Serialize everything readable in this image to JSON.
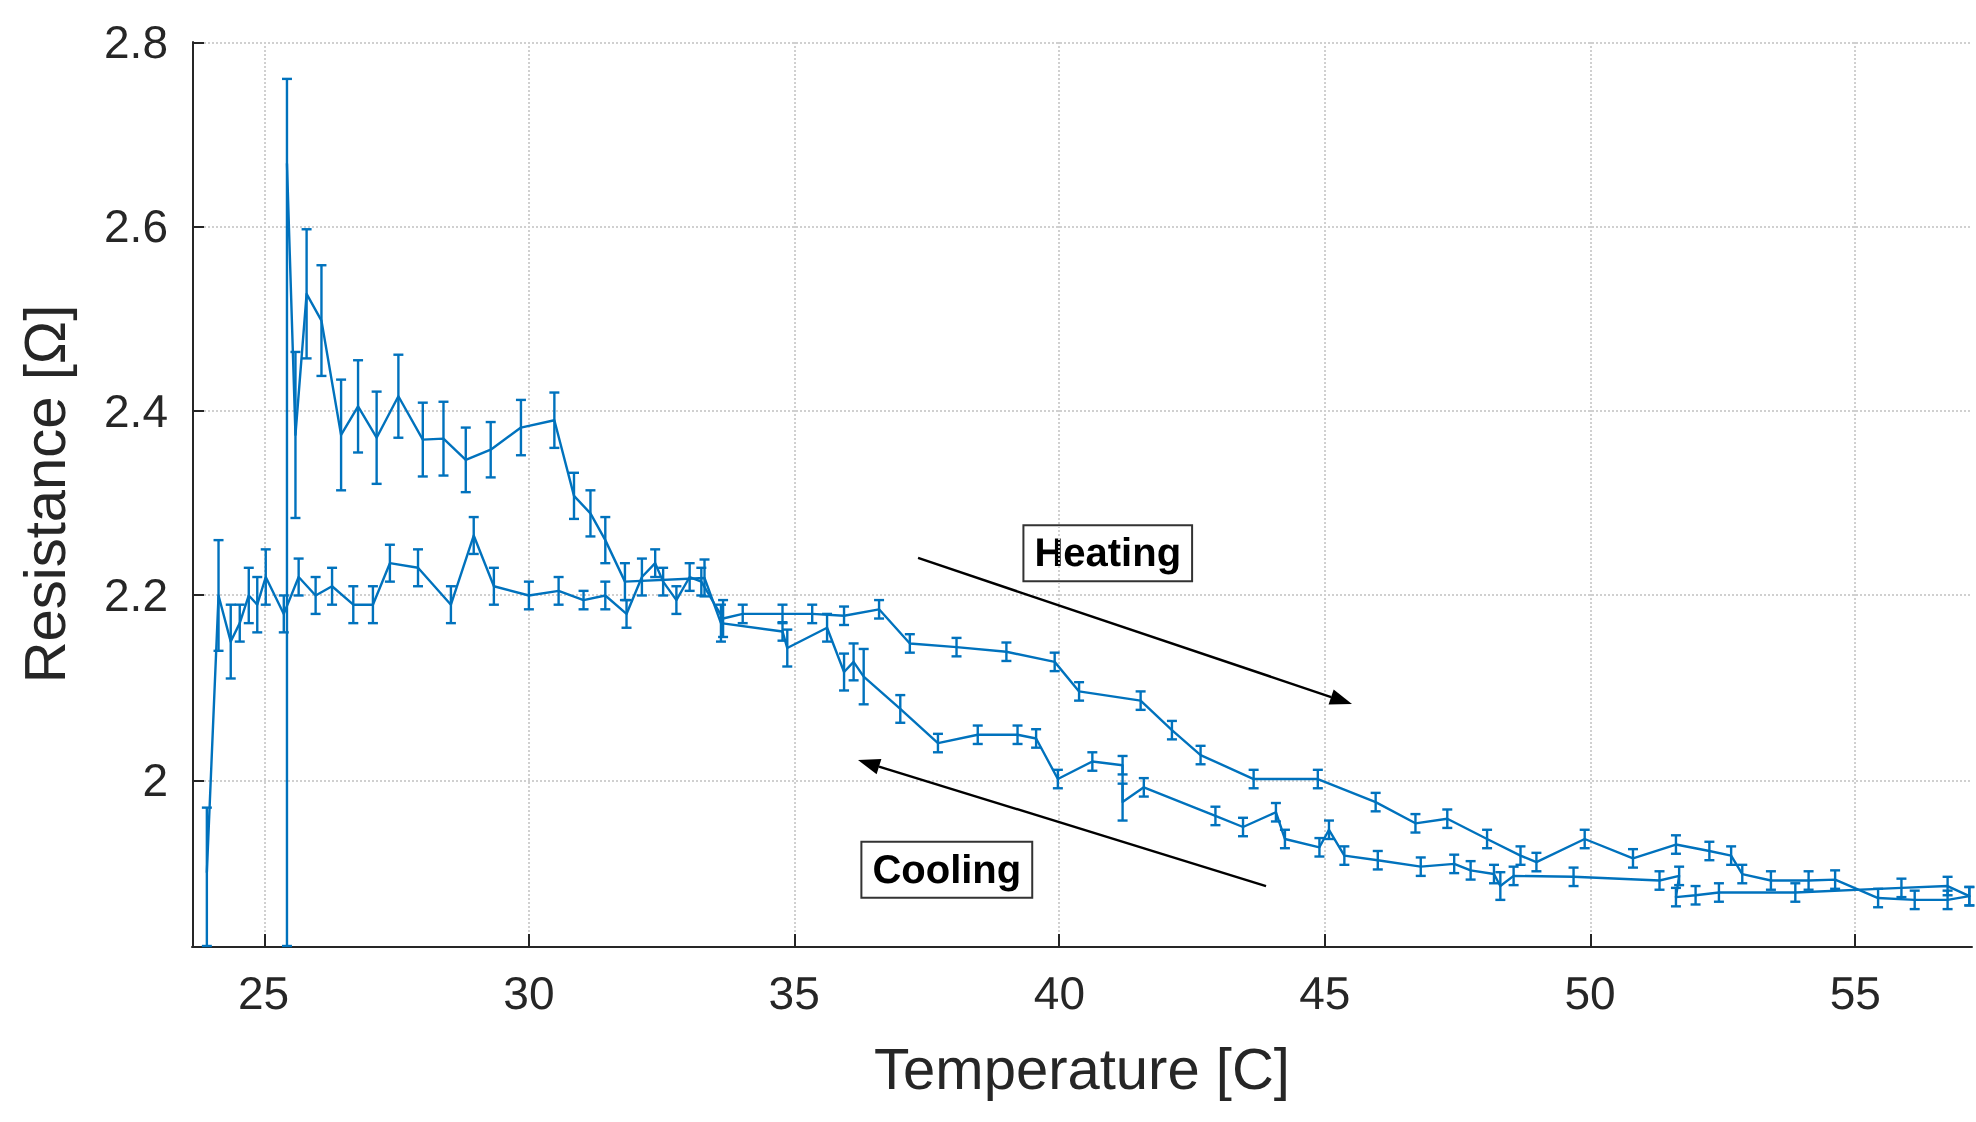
{
  "chart_data": {
    "type": "line",
    "xlabel": "Temperature [C]",
    "ylabel": "Resistance [Ω]",
    "xlim": [
      23.65,
      57.2
    ],
    "xticks": [
      25,
      30,
      35,
      40,
      45,
      50,
      55
    ],
    "ylim": [
      1.82,
      2.8
    ],
    "yticks": [
      2,
      2.2,
      2.4,
      2.6,
      2.8
    ],
    "grid": true,
    "marker": "none",
    "line_style": "solid",
    "annotations": [
      "Heating",
      "Cooling"
    ],
    "series": [
      {
        "color": "#0072bd",
        "x": [
          23.93,
          24.15,
          24.38,
          24.55,
          24.72,
          24.88,
          25.04,
          25.38,
          25.66,
          25.98,
          26.29,
          26.69,
          27.06,
          27.38,
          27.91,
          28.53,
          28.96,
          29.34,
          30.0,
          30.56,
          31.03,
          31.44,
          31.84,
          32.13,
          32.38,
          32.53,
          32.78,
          33.03,
          33.25,
          33.66,
          34.03,
          34.78,
          35.34,
          35.94,
          36.6,
          37.18,
          38.06,
          39.0,
          39.91,
          40.37,
          41.53,
          42.12,
          42.66,
          43.66,
          44.87,
          45.96,
          46.71,
          47.31,
          48.06,
          48.69,
          48.99,
          49.9,
          50.81,
          51.62,
          52.25,
          52.66,
          52.87,
          53.41,
          54.12,
          54.62,
          55.43,
          56.12,
          56.74,
          57.15
        ],
        "values": [
          1.9,
          2.2,
          2.15,
          2.17,
          2.2,
          2.19,
          2.22,
          2.18,
          2.22,
          2.2,
          2.21,
          2.19,
          2.19,
          2.235,
          2.23,
          2.19,
          2.265,
          2.21,
          2.2,
          2.205,
          2.195,
          2.2,
          2.18,
          2.22,
          2.235,
          2.215,
          2.195,
          2.22,
          2.215,
          2.175,
          2.18,
          2.18,
          2.18,
          2.178,
          2.185,
          2.148,
          2.144,
          2.139,
          2.128,
          2.096,
          2.086,
          2.054,
          2.027,
          2.001,
          2.001,
          1.976,
          1.953,
          1.958,
          1.936,
          1.918,
          1.911,
          1.936,
          1.915,
          1.93,
          1.923,
          1.918,
          1.898,
          1.891,
          1.891,
          1.892,
          1.872,
          1.87,
          1.87,
          1.874
        ],
        "errors": [
          [
            1.82,
            1.97
          ],
          0.06,
          0.04,
          0.02,
          0.03,
          0.03,
          0.03,
          0.02,
          0.02,
          0.02,
          0.02,
          0.02,
          0.02,
          0.02,
          0.02,
          0.02,
          0.02,
          0.02,
          0.015,
          0.015,
          0.01,
          0.015,
          0.015,
          0.02,
          0.015,
          0.015,
          0.015,
          0.015,
          0.015,
          0.02,
          0.01,
          0.01,
          0.01,
          0.01,
          0.01,
          0.01,
          0.01,
          0.01,
          0.01,
          0.01,
          0.01,
          0.01,
          0.01,
          0.01,
          0.01,
          0.01,
          0.01,
          0.01,
          0.01,
          0.01,
          0.01,
          0.01,
          0.01,
          0.01,
          0.01,
          0.01,
          0.01,
          0.01,
          0.01,
          0.01,
          0.01,
          0.01,
          0.01,
          0.01
        ]
      },
      {
        "color": "#0072bd",
        "x": [
          57.15,
          56.74,
          55.87,
          53.87,
          52.43,
          51.99,
          51.62,
          51.68,
          51.31,
          49.69,
          48.56,
          48.31,
          48.19,
          47.75,
          47.44,
          46.81,
          46.0,
          45.37,
          45.08,
          44.9,
          44.25,
          44.08,
          43.46,
          42.94,
          41.59,
          41.19,
          41.19,
          40.62,
          39.97,
          39.56,
          39.21,
          38.46,
          37.71,
          37.0,
          36.31,
          36.12,
          35.94,
          35.62,
          34.87,
          34.78,
          33.62,
          33.31,
          31.81,
          31.44,
          31.16,
          30.85,
          30.48,
          29.85,
          29.28,
          28.81,
          28.39,
          28.0,
          27.54,
          27.13,
          26.78,
          26.46,
          26.09,
          25.81,
          25.6,
          25.44
        ],
        "values": [
          1.874,
          1.885,
          1.883,
          1.878,
          1.878,
          1.875,
          1.873,
          1.896,
          1.891,
          1.895,
          1.896,
          1.885,
          1.898,
          1.902,
          1.909,
          1.906,
          1.913,
          1.918,
          1.946,
          1.927,
          1.936,
          1.965,
          1.949,
          1.961,
          1.992,
          1.976,
          2.016,
          2.02,
          2.001,
          2.045,
          2.049,
          2.049,
          2.04,
          2.077,
          2.112,
          2.128,
          2.117,
          2.165,
          2.143,
          2.161,
          2.17,
          2.219,
          2.215,
          2.26,
          2.289,
          2.308,
          2.39,
          2.382,
          2.358,
          2.347,
          2.37,
          2.369,
          2.416,
          2.371,
          2.405,
          2.374,
          2.498,
          2.527,
          2.374,
          2.668
        ],
        "errors": [
          0.01,
          0.01,
          0.01,
          0.01,
          0.01,
          0.01,
          0.01,
          0.01,
          0.01,
          0.01,
          0.01,
          0.015,
          0.01,
          0.01,
          0.01,
          0.01,
          0.01,
          0.01,
          0.01,
          0.01,
          0.01,
          0.01,
          0.01,
          0.01,
          0.01,
          0.02,
          0.01,
          0.01,
          0.01,
          0.01,
          0.01,
          0.01,
          0.01,
          0.015,
          0.03,
          0.02,
          0.02,
          0.015,
          0.02,
          0.01,
          0.02,
          0.02,
          0.02,
          0.025,
          0.025,
          0.025,
          0.03,
          0.03,
          0.03,
          0.035,
          0.04,
          0.04,
          0.045,
          0.05,
          0.05,
          0.06,
          0.06,
          0.07,
          0.09,
          [
            1.82,
            2.76
          ]
        ]
      }
    ]
  }
}
